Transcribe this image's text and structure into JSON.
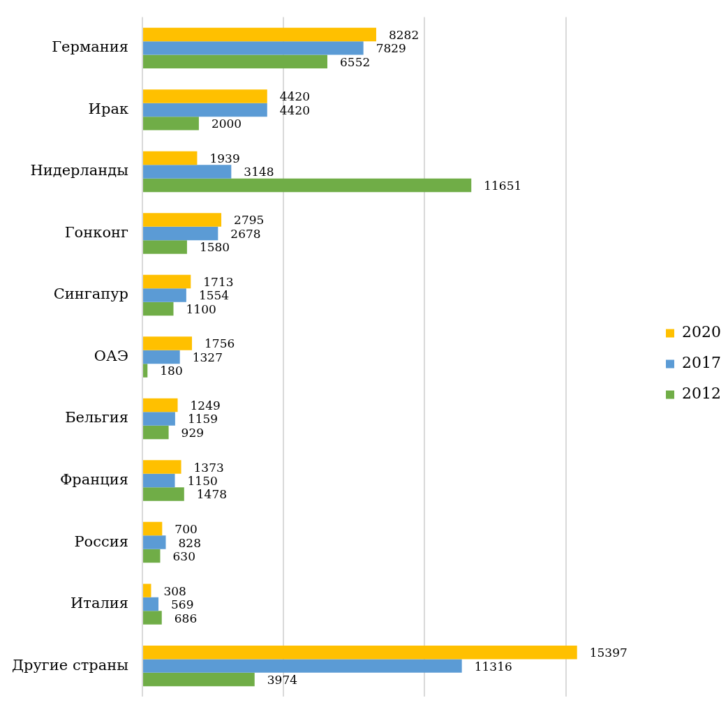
{
  "chart_data": {
    "type": "bar",
    "orientation": "horizontal",
    "categories": [
      "Германия",
      "Ирак",
      "Нидерланды",
      "Гонконг",
      "Сингапур",
      "ОАЭ",
      "Бельгия",
      "Франция",
      "Россия",
      "Италия",
      "Другие страны"
    ],
    "series": [
      {
        "name": "2020",
        "color": "#ffc000",
        "values": [
          8282,
          4420,
          1939,
          2795,
          1713,
          1756,
          1249,
          1373,
          700,
          308,
          15397
        ]
      },
      {
        "name": "2017",
        "color": "#5b9bd5",
        "values": [
          7829,
          4420,
          3148,
          2678,
          1554,
          1327,
          1159,
          1150,
          828,
          569,
          11316
        ]
      },
      {
        "name": "2012",
        "color": "#70ad47",
        "values": [
          6552,
          2000,
          11651,
          1580,
          1100,
          180,
          929,
          1478,
          630,
          686,
          3974
        ]
      }
    ],
    "xticks": [
      {
        "value": 0,
        "label": null
      },
      {
        "value": 5000,
        "label": null
      },
      {
        "value": 10000,
        "label": null
      },
      {
        "value": 15000,
        "label": null
      }
    ],
    "grid": "x",
    "legend": "right",
    "tick_labels": "y",
    "data_labels": true
  }
}
